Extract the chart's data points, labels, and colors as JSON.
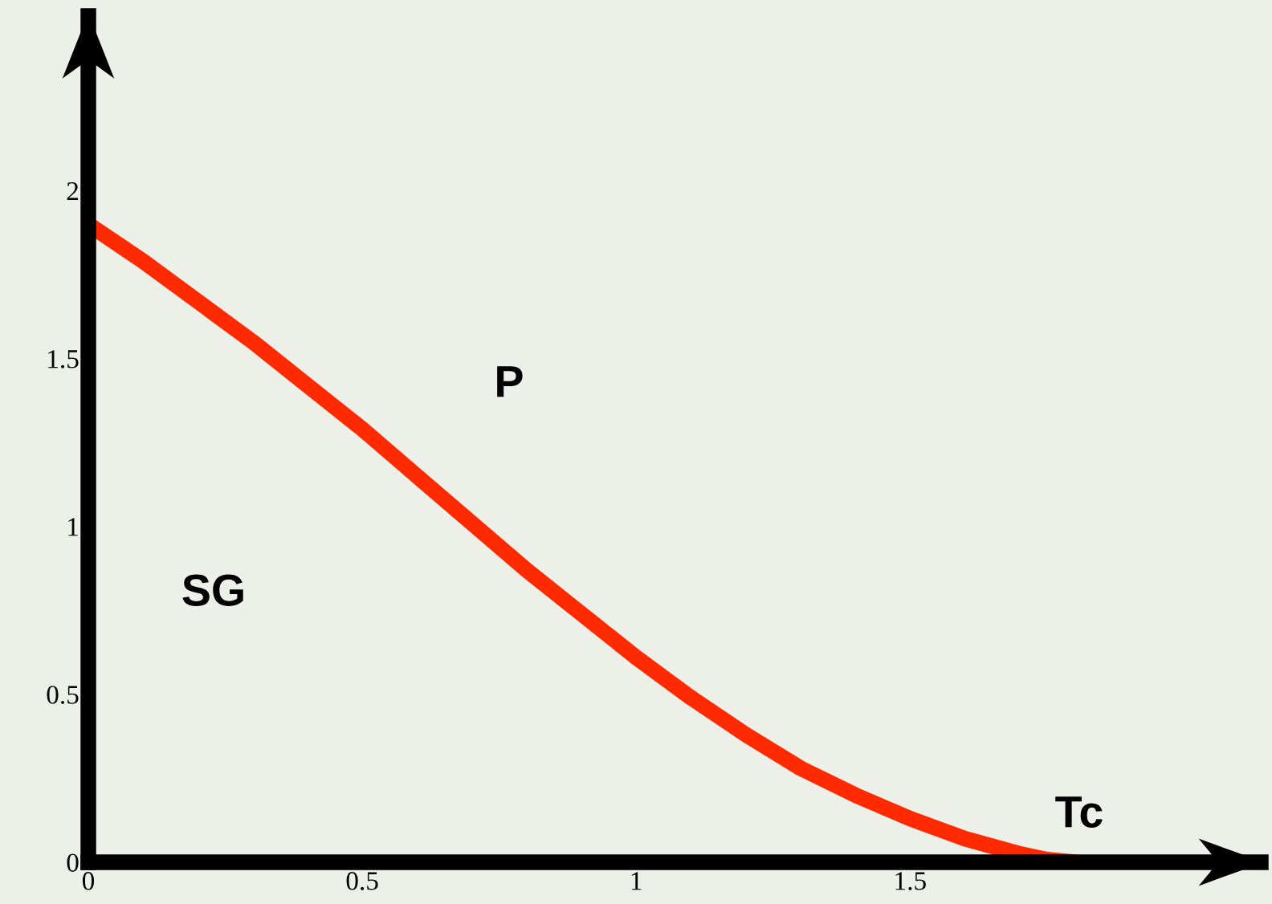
{
  "chart_data": {
    "type": "line",
    "x": [
      0,
      0.1,
      0.2,
      0.3,
      0.4,
      0.5,
      0.6,
      0.7,
      0.8,
      0.9,
      1,
      1.1,
      1.2,
      1.3,
      1.4,
      1.5,
      1.6,
      1.7,
      1.75,
      1.8
    ],
    "series": [
      {
        "color": "#ff2a00",
        "values": [
          1.9,
          1.79,
          1.67,
          1.55,
          1.42,
          1.29,
          1.15,
          1.01,
          0.87,
          0.74,
          0.61,
          0.49,
          0.38,
          0.28,
          0.2,
          0.13,
          0.07,
          0.025,
          0.008,
          0
        ]
      }
    ],
    "xlim": [
      0,
      2.14
    ],
    "ylim": [
      0,
      2.52
    ],
    "xticks": [
      0,
      0.5,
      1,
      1.5
    ],
    "yticks": [
      0,
      0.5,
      1,
      1.5,
      2
    ],
    "grid": false,
    "marker": "none",
    "line_style": "solid",
    "annotations": [
      "P",
      "SG",
      "Tc"
    ]
  }
}
